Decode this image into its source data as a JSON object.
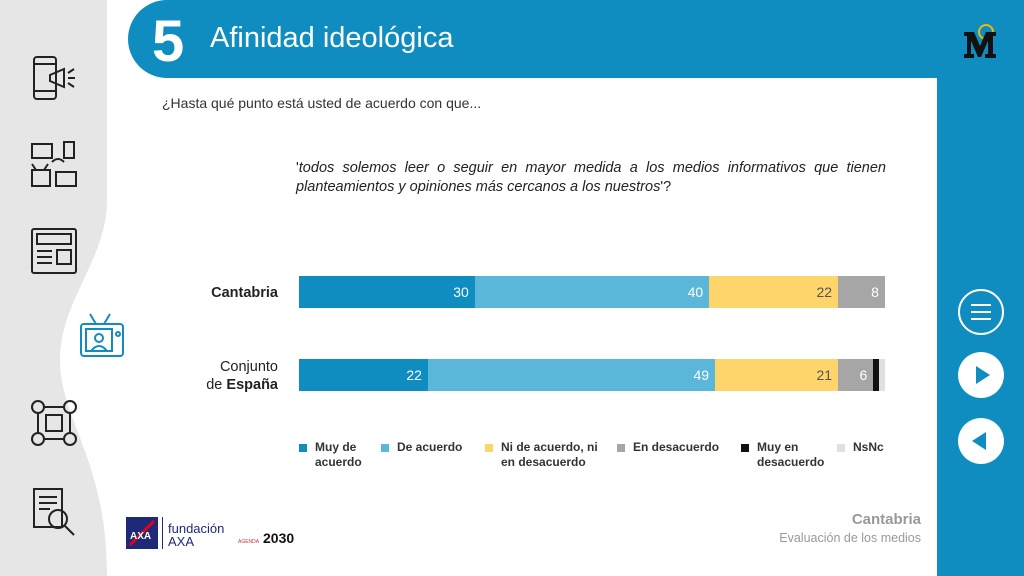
{
  "header": {
    "number": "5",
    "title": "Afinidad ideológica"
  },
  "question": "¿Hasta qué punto está usted de acuerdo con que...",
  "quote": {
    "open": "'",
    "text": "todos solemos leer o seguir en mayor medida a los medios informativos que tienen planteamientos y opiniones más cercanos a los nuestros",
    "close": "'?"
  },
  "rows": [
    {
      "label_plain": "",
      "label_bold": "Cantabria"
    },
    {
      "label_plain": "Conjunto de",
      "label_bold": "España"
    }
  ],
  "chart_data": {
    "type": "bar",
    "orientation": "horizontal-stacked-100",
    "categories": [
      "Cantabria",
      "Conjunto de España"
    ],
    "series": [
      {
        "name": "Muy de acuerdo",
        "color": "#0f8cc0",
        "values": [
          30,
          22
        ]
      },
      {
        "name": "De acuerdo",
        "color": "#5bb7d9",
        "values": [
          40,
          49
        ]
      },
      {
        "name": "Ni de acuerdo, ni en desacuerdo",
        "color": "#fdd56a",
        "values": [
          22,
          21
        ]
      },
      {
        "name": "En desacuerdo",
        "color": "#a6a6a6",
        "values": [
          8,
          6
        ]
      },
      {
        "name": "Muy en desacuerdo",
        "color": "#111111",
        "values": [
          0,
          1
        ]
      },
      {
        "name": "NsNc",
        "color": "#e0e0e0",
        "values": [
          0,
          1
        ]
      }
    ],
    "labels_shown": [
      [
        "30",
        "40",
        "22",
        "8"
      ],
      [
        "22",
        "49",
        "21",
        "6"
      ]
    ],
    "legend_position": "bottom"
  },
  "legend": [
    {
      "line1": "Muy de",
      "line2": "acuerdo",
      "color": "#0f8cc0"
    },
    {
      "line1": "De acuerdo",
      "line2": "",
      "color": "#5bb7d9"
    },
    {
      "line1": "Ni de acuerdo, ni",
      "line2": "en desacuerdo",
      "color": "#fdd56a"
    },
    {
      "line1": "En desacuerdo",
      "line2": "",
      "color": "#a6a6a6"
    },
    {
      "line1": "Muy en",
      "line2": "desacuerdo",
      "color": "#111111"
    },
    {
      "line1": "NsNc",
      "line2": "",
      "color": "#e0e0e0"
    }
  ],
  "footer": {
    "region": "Cantabria",
    "subtitle": "Evaluación de los medios"
  },
  "brand": {
    "fundacion": "fundación",
    "axa": "AXA",
    "agenda_small": "AGENDA",
    "agenda_year": "2030"
  },
  "colors": {
    "primary": "#0f8cc0",
    "side": "#e6e6e6"
  }
}
